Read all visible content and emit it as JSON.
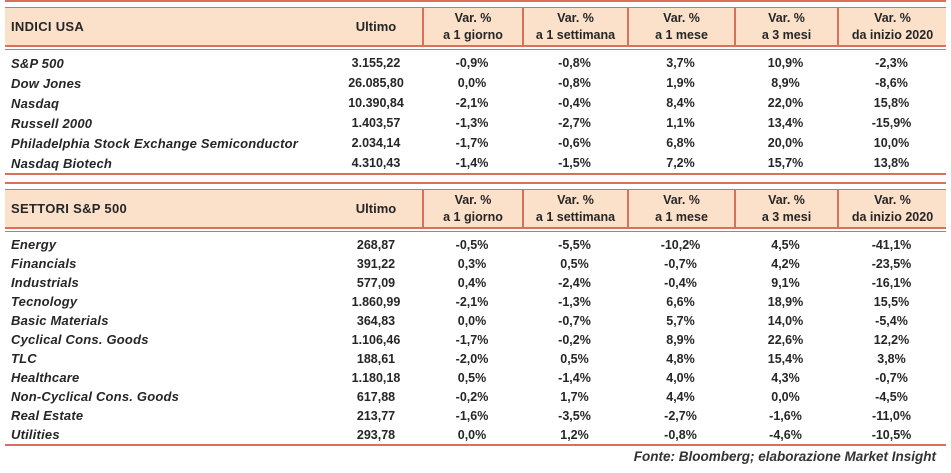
{
  "colors": {
    "accent_border": "#d8705a",
    "header_background": "#fbe0ca",
    "text": "#262626"
  },
  "columns": {
    "ultimo_label": "Ultimo",
    "var_headers": [
      {
        "line1": "Var. %",
        "line2": "a 1 giorno"
      },
      {
        "line1": "Var. %",
        "line2": "a 1 settimana"
      },
      {
        "line1": "Var. %",
        "line2": "a 1 mese"
      },
      {
        "line1": "Var. %",
        "line2": "a 3 mesi"
      },
      {
        "line1": "Var. %",
        "line2": "da inizio 2020"
      }
    ]
  },
  "sections": [
    {
      "title": "INDICI USA",
      "rows": [
        {
          "name": "S&P 500",
          "ultimo": "3.155,22",
          "vars": [
            "-0,9%",
            "-0,8%",
            "3,7%",
            "10,9%",
            "-2,3%"
          ]
        },
        {
          "name": "Dow Jones",
          "ultimo": "26.085,80",
          "vars": [
            "0,0%",
            "-0,8%",
            "1,9%",
            "8,9%",
            "-8,6%"
          ]
        },
        {
          "name": "Nasdaq",
          "ultimo": "10.390,84",
          "vars": [
            "-2,1%",
            "-0,4%",
            "8,4%",
            "22,0%",
            "15,8%"
          ]
        },
        {
          "name": "Russell 2000",
          "ultimo": "1.403,57",
          "vars": [
            "-1,3%",
            "-2,7%",
            "1,1%",
            "13,4%",
            "-15,9%"
          ]
        },
        {
          "name": "Philadelphia Stock Exchange Semiconductor",
          "ultimo": "2.034,14",
          "vars": [
            "-1,7%",
            "-0,6%",
            "6,8%",
            "20,0%",
            "10,0%"
          ]
        },
        {
          "name": "Nasdaq Biotech",
          "ultimo": "4.310,43",
          "vars": [
            "-1,4%",
            "-1,5%",
            "7,2%",
            "15,7%",
            "13,8%"
          ]
        }
      ]
    },
    {
      "title": "SETTORI S&P 500",
      "rows": [
        {
          "name": "Energy",
          "ultimo": "268,87",
          "vars": [
            "-0,5%",
            "-5,5%",
            "-10,2%",
            "4,5%",
            "-41,1%"
          ]
        },
        {
          "name": "Financials",
          "ultimo": "391,22",
          "vars": [
            "0,3%",
            "0,5%",
            "-0,7%",
            "4,2%",
            "-23,5%"
          ]
        },
        {
          "name": "Industrials",
          "ultimo": "577,09",
          "vars": [
            "0,4%",
            "-2,4%",
            "-0,4%",
            "9,1%",
            "-16,1%"
          ]
        },
        {
          "name": "Tecnology",
          "ultimo": "1.860,99",
          "vars": [
            "-2,1%",
            "-1,3%",
            "6,6%",
            "18,9%",
            "15,5%"
          ]
        },
        {
          "name": "Basic Materials",
          "ultimo": "364,83",
          "vars": [
            "0,0%",
            "-0,7%",
            "5,7%",
            "14,0%",
            "-5,4%"
          ]
        },
        {
          "name": "Cyclical Cons. Goods",
          "ultimo": "1.106,46",
          "vars": [
            "-1,7%",
            "-0,2%",
            "8,9%",
            "22,6%",
            "12,2%"
          ]
        },
        {
          "name": "TLC",
          "ultimo": "188,61",
          "vars": [
            "-2,0%",
            "0,5%",
            "4,8%",
            "15,4%",
            "3,8%"
          ]
        },
        {
          "name": "Healthcare",
          "ultimo": "1.180,18",
          "vars": [
            "0,5%",
            "-1,4%",
            "4,0%",
            "4,3%",
            "-0,7%"
          ]
        },
        {
          "name": "Non-Cyclical Cons. Goods",
          "ultimo": "617,88",
          "vars": [
            "-0,2%",
            "1,7%",
            "4,4%",
            "0,0%",
            "-4,5%"
          ]
        },
        {
          "name": "Real Estate",
          "ultimo": "213,77",
          "vars": [
            "-1,6%",
            "-3,5%",
            "-2,7%",
            "-1,6%",
            "-11,0%"
          ]
        },
        {
          "name": "Utilities",
          "ultimo": "293,78",
          "vars": [
            "0,0%",
            "1,2%",
            "-0,8%",
            "-4,6%",
            "-10,5%"
          ]
        }
      ]
    }
  ],
  "footer": {
    "source_note": "Fonte: Bloomberg; elaborazione Market Insight"
  }
}
